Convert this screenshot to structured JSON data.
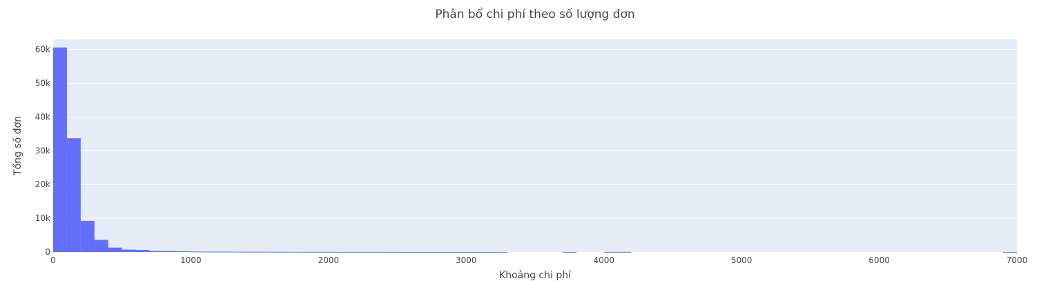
{
  "chart_data": {
    "type": "bar",
    "title": "Phân bổ chi phí theo số lượng đơn",
    "xlabel": "Khoảng chi phí",
    "ylabel": "Tổng số đơn",
    "xlim": [
      0,
      7000
    ],
    "ylim": [
      0,
      63000
    ],
    "bin_width": 100,
    "x_ticks": [
      0,
      1000,
      2000,
      3000,
      4000,
      5000,
      6000,
      7000
    ],
    "x_tick_labels": [
      "0",
      "1000",
      "2000",
      "3000",
      "4000",
      "5000",
      "6000",
      "7000"
    ],
    "y_ticks": [
      0,
      10000,
      20000,
      30000,
      40000,
      50000,
      60000
    ],
    "y_tick_labels": [
      "0",
      "10k",
      "20k",
      "30k",
      "40k",
      "50k",
      "60k"
    ],
    "grid": true,
    "bar_color": "#636efa",
    "plot_bg": "#e5ecf6",
    "bins": [
      {
        "start": 0,
        "count": 60600
      },
      {
        "start": 100,
        "count": 33700
      },
      {
        "start": 200,
        "count": 9200
      },
      {
        "start": 300,
        "count": 3600
      },
      {
        "start": 400,
        "count": 1300
      },
      {
        "start": 500,
        "count": 700
      },
      {
        "start": 600,
        "count": 600
      },
      {
        "start": 700,
        "count": 300
      },
      {
        "start": 800,
        "count": 250
      },
      {
        "start": 900,
        "count": 200
      },
      {
        "start": 1000,
        "count": 120
      },
      {
        "start": 1100,
        "count": 100
      },
      {
        "start": 1200,
        "count": 90
      },
      {
        "start": 1300,
        "count": 80
      },
      {
        "start": 1400,
        "count": 70
      },
      {
        "start": 1500,
        "count": 60
      },
      {
        "start": 1600,
        "count": 50
      },
      {
        "start": 1700,
        "count": 45
      },
      {
        "start": 1800,
        "count": 40
      },
      {
        "start": 1900,
        "count": 38
      },
      {
        "start": 2000,
        "count": 35
      },
      {
        "start": 2100,
        "count": 30
      },
      {
        "start": 2200,
        "count": 28
      },
      {
        "start": 2300,
        "count": 25
      },
      {
        "start": 2400,
        "count": 22
      },
      {
        "start": 2500,
        "count": 20
      },
      {
        "start": 2600,
        "count": 20
      },
      {
        "start": 2700,
        "count": 18
      },
      {
        "start": 2800,
        "count": 18
      },
      {
        "start": 2900,
        "count": 16
      },
      {
        "start": 3000,
        "count": 15
      },
      {
        "start": 3100,
        "count": 15
      },
      {
        "start": 3200,
        "count": 14
      },
      {
        "start": 3700,
        "count": 20
      },
      {
        "start": 4000,
        "count": 30
      },
      {
        "start": 4100,
        "count": 30
      },
      {
        "start": 6900,
        "count": 15
      }
    ]
  }
}
